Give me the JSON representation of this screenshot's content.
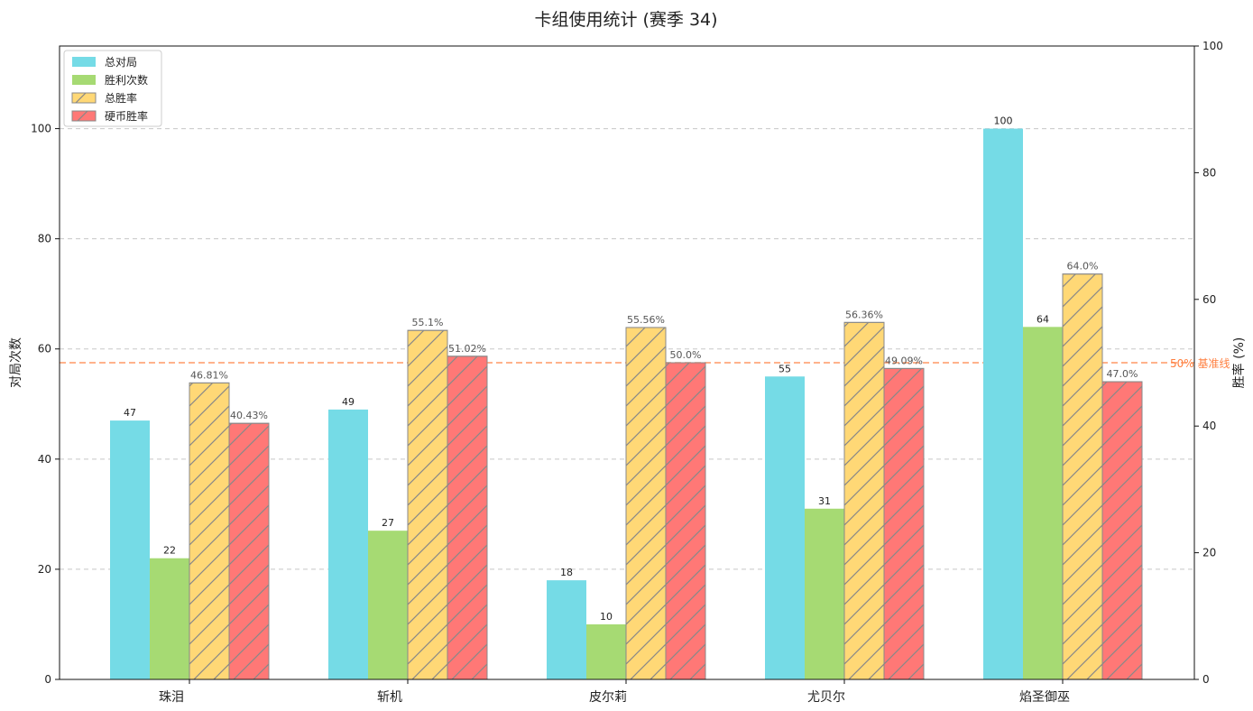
{
  "chart_data": {
    "type": "bar",
    "title": "卡组使用统计 (赛季 34)",
    "categories": [
      "珠泪",
      "斩机",
      "皮尔莉",
      "尤贝尔",
      "焰圣御巫"
    ],
    "ylabel": "对局次数",
    "y2label": "胜率 (%)",
    "ylim": [
      0,
      115
    ],
    "y2lim": [
      0,
      100
    ],
    "yticks": [
      0,
      20,
      40,
      60,
      80,
      100
    ],
    "y2ticks": [
      0,
      20,
      40,
      60,
      80,
      100
    ],
    "grid": true,
    "legend_position": "top-left",
    "series": [
      {
        "name": "总对局",
        "axis": "left",
        "color": "#75dbe6",
        "hatch": false,
        "values": [
          47,
          49,
          18,
          55,
          100
        ],
        "labels": [
          "47",
          "49",
          "18",
          "55",
          "100"
        ]
      },
      {
        "name": "胜利次数",
        "axis": "left",
        "color": "#a6da73",
        "hatch": false,
        "values": [
          22,
          27,
          10,
          31,
          64
        ],
        "labels": [
          "22",
          "27",
          "10",
          "31",
          "64"
        ]
      },
      {
        "name": "总胜率",
        "axis": "right",
        "color": "#ffd876",
        "hatch": true,
        "values": [
          46.81,
          55.1,
          55.56,
          56.36,
          64.0
        ],
        "labels": [
          "46.81%",
          "55.1%",
          "55.56%",
          "56.36%",
          "64.0%"
        ]
      },
      {
        "name": "硬币胜率",
        "axis": "right",
        "color": "#ff7876",
        "hatch": true,
        "values": [
          40.43,
          51.02,
          50.0,
          49.09,
          47.0
        ],
        "labels": [
          "40.43%",
          "51.02%",
          "50.0%",
          "49.09%",
          "47.0%"
        ]
      }
    ],
    "baseline": {
      "value": 50,
      "axis": "right",
      "label": "50% 基准线",
      "color": "#ff7f3f"
    }
  }
}
